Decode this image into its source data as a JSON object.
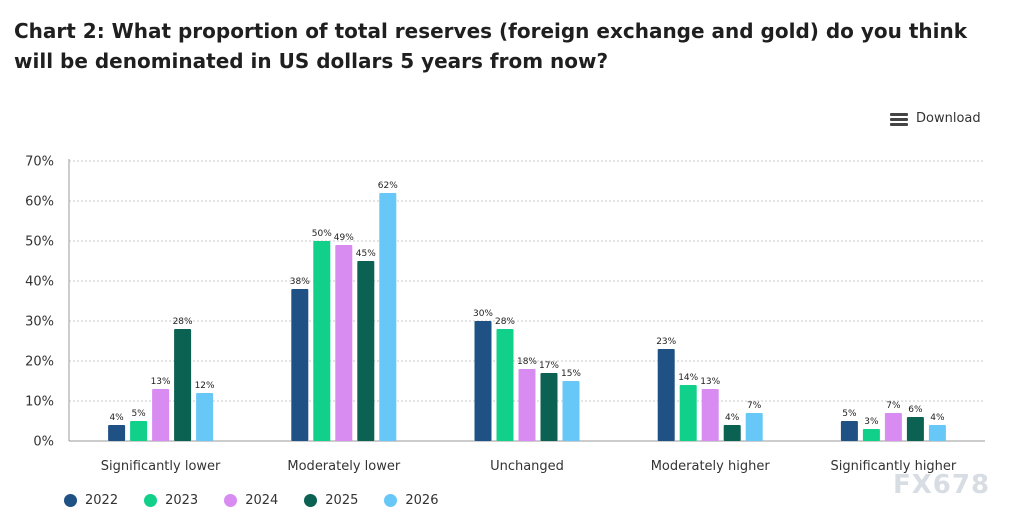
{
  "title": "Chart 2: What proportion of total reserves (foreign exchange and gold) do you think will be denominated in US dollars 5 years from now?",
  "download_label": "Download",
  "watermark": "FX678",
  "legend_icons": {
    "download": "menu-icon"
  },
  "chart_data": {
    "type": "bar",
    "title": "Chart 2: What proportion of total reserves (foreign exchange and gold) do you think will be denominated in US dollars 5 years from now?",
    "categories": [
      "Significantly lower",
      "Moderately lower",
      "Unchanged",
      "Moderately higher",
      "Significantly higher"
    ],
    "series": [
      {
        "name": "2022",
        "color": "#1f5185",
        "values": [
          4,
          38,
          30,
          23,
          5
        ]
      },
      {
        "name": "2023",
        "color": "#10d08a",
        "values": [
          5,
          50,
          28,
          14,
          3
        ]
      },
      {
        "name": "2024",
        "color": "#d88cf2",
        "values": [
          13,
          49,
          18,
          13,
          7
        ]
      },
      {
        "name": "2025",
        "color": "#0b6152",
        "values": [
          28,
          45,
          17,
          4,
          6
        ]
      },
      {
        "name": "2026",
        "color": "#67c8f8",
        "values": [
          12,
          62,
          15,
          7,
          4
        ]
      }
    ],
    "ylim": [
      0,
      70
    ],
    "yticks": [
      "0%",
      "10%",
      "20%",
      "30%",
      "40%",
      "50%",
      "60%",
      "70%"
    ],
    "value_suffix": "%",
    "grid": true,
    "legend_position": "bottom-left"
  }
}
